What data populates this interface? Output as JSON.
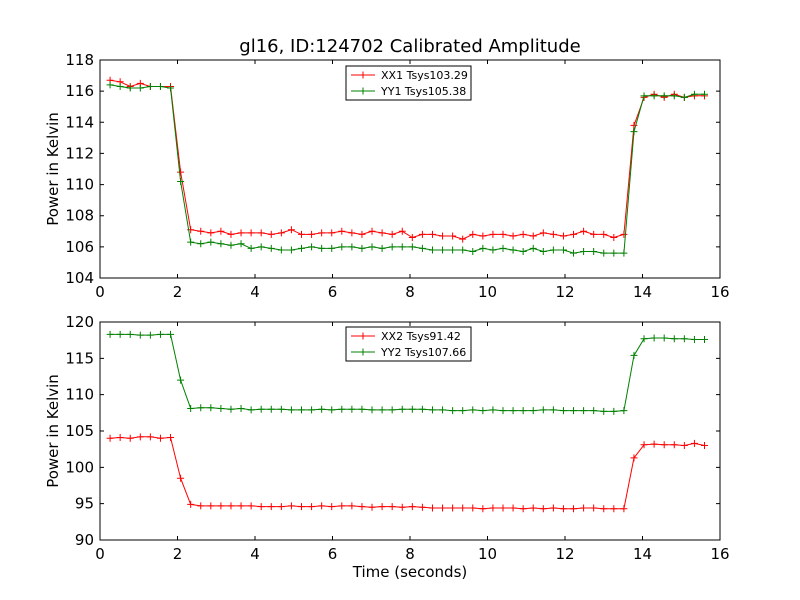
{
  "figure": {
    "title": "gl16, ID:124702 Calibrated Amplitude"
  },
  "chart_data": [
    {
      "type": "line",
      "title": "gl16, ID:124702 Calibrated Amplitude",
      "xlabel": "",
      "ylabel": "Power in Kelvin",
      "xlim": [
        0,
        16
      ],
      "ylim": [
        104,
        118
      ],
      "xticks": [
        0,
        2,
        4,
        6,
        8,
        10,
        12,
        14,
        16
      ],
      "yticks": [
        104,
        106,
        108,
        110,
        112,
        114,
        116,
        118
      ],
      "grid": false,
      "legend": "top-center",
      "x": [
        0.26,
        0.52,
        0.78,
        1.04,
        1.3,
        1.56,
        1.82,
        2.08,
        2.34,
        2.6,
        2.86,
        3.12,
        3.38,
        3.64,
        3.9,
        4.16,
        4.42,
        4.68,
        4.94,
        5.2,
        5.46,
        5.72,
        5.98,
        6.24,
        6.5,
        6.76,
        7.02,
        7.28,
        7.54,
        7.8,
        8.06,
        8.32,
        8.58,
        8.84,
        9.1,
        9.36,
        9.62,
        9.88,
        10.14,
        10.4,
        10.66,
        10.92,
        11.18,
        11.44,
        11.7,
        11.96,
        12.22,
        12.48,
        12.74,
        13.0,
        13.26,
        13.52,
        13.78,
        14.04,
        14.3,
        14.56,
        14.82,
        15.08,
        15.34,
        15.6
      ],
      "series": [
        {
          "name": "XX1 Tsys103.29",
          "color": "#ff0000",
          "values": [
            116.7,
            116.6,
            116.3,
            116.5,
            116.3,
            116.3,
            116.3,
            110.8,
            107.1,
            107.0,
            106.9,
            107.0,
            106.8,
            106.9,
            106.9,
            106.9,
            106.8,
            106.9,
            107.1,
            106.8,
            106.8,
            106.9,
            106.9,
            107.0,
            106.9,
            106.8,
            107.0,
            106.9,
            106.8,
            107.0,
            106.6,
            106.8,
            106.8,
            106.7,
            106.7,
            106.5,
            106.8,
            106.7,
            106.8,
            106.8,
            106.7,
            106.8,
            106.7,
            106.9,
            106.8,
            106.7,
            106.8,
            107.0,
            106.8,
            106.8,
            106.6,
            106.8,
            113.8,
            115.6,
            115.8,
            115.6,
            115.8,
            115.6,
            115.7,
            115.7
          ]
        },
        {
          "name": "YY1 Tsys105.38",
          "color": "#008000",
          "values": [
            116.4,
            116.3,
            116.2,
            116.2,
            116.3,
            116.3,
            116.2,
            110.2,
            106.3,
            106.2,
            106.3,
            106.2,
            106.1,
            106.2,
            105.9,
            106.0,
            105.9,
            105.8,
            105.8,
            105.9,
            106.0,
            105.9,
            105.9,
            106.0,
            106.0,
            105.9,
            106.0,
            105.9,
            106.0,
            106.0,
            106.0,
            105.9,
            105.8,
            105.8,
            105.8,
            105.8,
            105.7,
            105.9,
            105.8,
            105.9,
            105.8,
            105.7,
            105.9,
            105.7,
            105.8,
            105.8,
            105.6,
            105.7,
            105.7,
            105.6,
            105.6,
            105.6,
            113.4,
            115.7,
            115.7,
            115.7,
            115.7,
            115.6,
            115.8,
            115.8
          ]
        }
      ]
    },
    {
      "type": "line",
      "xlabel": "Time (seconds)",
      "ylabel": "Power in Kelvin",
      "xlim": [
        0,
        16
      ],
      "ylim": [
        90,
        120
      ],
      "xticks": [
        0,
        2,
        4,
        6,
        8,
        10,
        12,
        14,
        16
      ],
      "yticks": [
        90,
        95,
        100,
        105,
        110,
        115,
        120
      ],
      "grid": false,
      "legend": "top-center",
      "x": [
        0.26,
        0.52,
        0.78,
        1.04,
        1.3,
        1.56,
        1.82,
        2.08,
        2.34,
        2.6,
        2.86,
        3.12,
        3.38,
        3.64,
        3.9,
        4.16,
        4.42,
        4.68,
        4.94,
        5.2,
        5.46,
        5.72,
        5.98,
        6.24,
        6.5,
        6.76,
        7.02,
        7.28,
        7.54,
        7.8,
        8.06,
        8.32,
        8.58,
        8.84,
        9.1,
        9.36,
        9.62,
        9.88,
        10.14,
        10.4,
        10.66,
        10.92,
        11.18,
        11.44,
        11.7,
        11.96,
        12.22,
        12.48,
        12.74,
        13.0,
        13.26,
        13.52,
        13.78,
        14.04,
        14.3,
        14.56,
        14.82,
        15.08,
        15.34,
        15.6
      ],
      "series": [
        {
          "name": "XX2 Tsys91.42",
          "color": "#ff0000",
          "values": [
            104.0,
            104.1,
            104.0,
            104.2,
            104.2,
            104.0,
            104.1,
            98.5,
            94.9,
            94.7,
            94.7,
            94.7,
            94.7,
            94.7,
            94.7,
            94.6,
            94.6,
            94.6,
            94.7,
            94.6,
            94.6,
            94.7,
            94.6,
            94.7,
            94.7,
            94.6,
            94.5,
            94.6,
            94.6,
            94.5,
            94.6,
            94.5,
            94.4,
            94.4,
            94.4,
            94.4,
            94.4,
            94.3,
            94.4,
            94.4,
            94.4,
            94.3,
            94.4,
            94.3,
            94.4,
            94.3,
            94.3,
            94.4,
            94.4,
            94.3,
            94.3,
            94.3,
            101.3,
            103.1,
            103.2,
            103.1,
            103.1,
            103.0,
            103.3,
            103.0
          ]
        },
        {
          "name": "YY2 Tsys107.66",
          "color": "#008000",
          "values": [
            118.3,
            118.3,
            118.3,
            118.2,
            118.2,
            118.3,
            118.3,
            112.0,
            108.1,
            108.2,
            108.2,
            108.1,
            108.0,
            108.1,
            107.9,
            108.0,
            108.0,
            108.0,
            107.9,
            107.9,
            107.9,
            108.0,
            107.9,
            108.0,
            108.0,
            108.0,
            107.9,
            107.9,
            107.9,
            108.0,
            108.0,
            108.0,
            107.9,
            107.9,
            107.8,
            107.8,
            107.9,
            107.8,
            107.9,
            107.8,
            107.8,
            107.8,
            107.8,
            107.9,
            107.9,
            107.8,
            107.8,
            107.8,
            107.8,
            107.7,
            107.7,
            107.8,
            115.4,
            117.7,
            117.8,
            117.8,
            117.7,
            117.7,
            117.6,
            117.6
          ]
        }
      ]
    }
  ]
}
